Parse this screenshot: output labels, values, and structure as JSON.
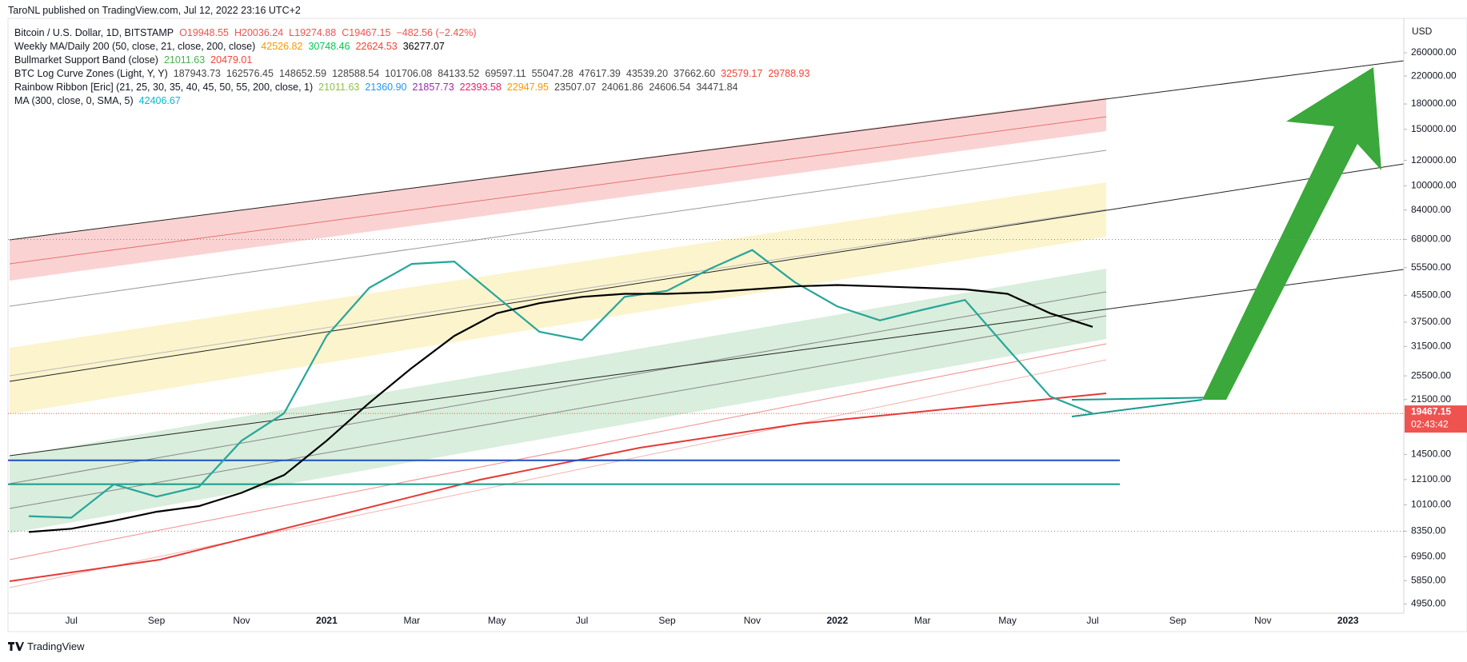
{
  "chart_data": {
    "type": "line",
    "title": "TaroNL published on TradingView.com, Jul 12, 2022 23:16 UTC+2",
    "y_unit": "USD",
    "log_scale": true,
    "grid": false,
    "categories": [
      null,
      "Jul",
      null,
      "Sep",
      null,
      "Nov",
      null,
      "2021",
      null,
      "Mar",
      null,
      "May",
      null,
      "Jul",
      null,
      "Sep",
      null,
      "Nov",
      null,
      "2022",
      null,
      "Mar",
      null,
      "May",
      null,
      "Jul",
      null,
      "Sep",
      null,
      "Nov",
      null,
      "2023"
    ],
    "series": [
      {
        "name": "Bitcoin / U.S. Dollar, 1D, BITSTAMP",
        "color": "#26a69a",
        "values": [
          9300,
          9200,
          11700,
          10700,
          11500,
          16000,
          19500,
          34000,
          48000,
          57000,
          58000,
          45000,
          35000,
          33000,
          45000,
          47000,
          55000,
          63000,
          50000,
          42000,
          38000,
          41000,
          44000,
          31000,
          22000,
          19467,
          null,
          null,
          null,
          null,
          null,
          null
        ]
      },
      {
        "name": "Weekly MA/Daily 200 (50, close, 21, close, 200, close)",
        "color": "#000000",
        "values": [
          8300,
          8500,
          9000,
          9600,
          10000,
          11000,
          12500,
          16000,
          21000,
          27000,
          34000,
          40000,
          43000,
          45000,
          46000,
          46000,
          46500,
          47500,
          48500,
          49000,
          48500,
          48000,
          47500,
          46000,
          40000,
          36277,
          null,
          null,
          null,
          null,
          null,
          null
        ]
      }
    ],
    "series_readouts": [
      [
        {
          "text": "O19948.55",
          "color": "#ef5350"
        },
        {
          "text": "H20036.24",
          "color": "#ef5350"
        },
        {
          "text": "L19274.88",
          "color": "#ef5350"
        },
        {
          "text": "C19467.15",
          "color": "#ef5350"
        },
        {
          "text": "−482.56 (−2.42%)",
          "color": "#ef5350"
        }
      ],
      [
        {
          "text": "42526.82",
          "color": "#ff9800"
        },
        {
          "text": "30748.46",
          "color": "#00c853"
        },
        {
          "text": "22624.53",
          "color": "#f44336"
        },
        {
          "text": "36277.07",
          "color": "#000000"
        }
      ]
    ],
    "indicators": [
      {
        "name": "Bullmarket Support Band (close)",
        "readouts": [
          {
            "text": "21011.63",
            "color": "#4caf50"
          },
          {
            "text": "20479.01",
            "color": "#f44336"
          }
        ]
      },
      {
        "name": "BTC Log Curve Zones (Light, Y, Y)",
        "readouts": [
          {
            "text": "187943.73",
            "color": "#444444"
          },
          {
            "text": "162576.45",
            "color": "#444444"
          },
          {
            "text": "148652.59",
            "color": "#444444"
          },
          {
            "text": "128588.54",
            "color": "#444444"
          },
          {
            "text": "101706.08",
            "color": "#444444"
          },
          {
            "text": "84133.52",
            "color": "#444444"
          },
          {
            "text": "69597.11",
            "color": "#444444"
          },
          {
            "text": "55047.28",
            "color": "#444444"
          },
          {
            "text": "47617.39",
            "color": "#444444"
          },
          {
            "text": "43539.20",
            "color": "#444444"
          },
          {
            "text": "37662.60",
            "color": "#444444"
          },
          {
            "text": "32579.17",
            "color": "#f44336"
          },
          {
            "text": "29788.93",
            "color": "#f44336"
          }
        ]
      },
      {
        "name": "Rainbow Ribbon [Eric] (21, 25, 30, 35, 40, 45, 50, 55, 200, close, 1)",
        "readouts": [
          {
            "text": "21011.63",
            "color": "#8bc34a"
          },
          {
            "text": "21360.90",
            "color": "#2196f3"
          },
          {
            "text": "21857.73",
            "color": "#9c27b0"
          },
          {
            "text": "22393.58",
            "color": "#e91e63"
          },
          {
            "text": "22947.95",
            "color": "#ff9800"
          },
          {
            "text": "23507.07",
            "color": "#444444"
          },
          {
            "text": "24061.86",
            "color": "#444444"
          },
          {
            "text": "24606.54",
            "color": "#444444"
          },
          {
            "text": "34471.84",
            "color": "#444444"
          }
        ]
      },
      {
        "name": "MA (300, close, 0, SMA, 5)",
        "readouts": [
          {
            "text": "42406.67",
            "color": "#00bcd4"
          }
        ]
      }
    ],
    "ylim": [
      4630,
      333000
    ],
    "yticks": [
      {
        "value": 260000,
        "label": "260000.00"
      },
      {
        "value": 220000,
        "label": "220000.00"
      },
      {
        "value": 180000,
        "label": "180000.00"
      },
      {
        "value": 150000,
        "label": "150000.00"
      },
      {
        "value": 120000,
        "label": "120000.00"
      },
      {
        "value": 100000,
        "label": "100000.00"
      },
      {
        "value": 84000,
        "label": "84000.00"
      },
      {
        "value": 68000,
        "label": "68000.00"
      },
      {
        "value": 55500,
        "label": "55500.00"
      },
      {
        "value": 45500,
        "label": "45500.00"
      },
      {
        "value": 37500,
        "label": "37500.00"
      },
      {
        "value": 31500,
        "label": "31500.00"
      },
      {
        "value": 25500,
        "label": "25500.00"
      },
      {
        "value": 21500,
        "label": "21500.00"
      },
      {
        "value": 14500,
        "label": "14500.00"
      },
      {
        "value": 12100,
        "label": "12100.00"
      },
      {
        "value": 10100,
        "label": "10100.00"
      },
      {
        "value": 8350,
        "label": "8350.00"
      },
      {
        "value": 6950,
        "label": "6950.00"
      },
      {
        "value": 5850,
        "label": "5850.00"
      },
      {
        "value": 4950,
        "label": "4950.00"
      }
    ],
    "hlines": [
      {
        "value": 13900,
        "color": "#1e4fc2"
      },
      {
        "value": 11700,
        "color": "#159a8c"
      }
    ],
    "dotted_levels": [
      68000,
      8350
    ],
    "last_price": 19467.15,
    "last_price_color": "#ef5350",
    "countdown": "02:43:42"
  },
  "footer": "TradingView"
}
